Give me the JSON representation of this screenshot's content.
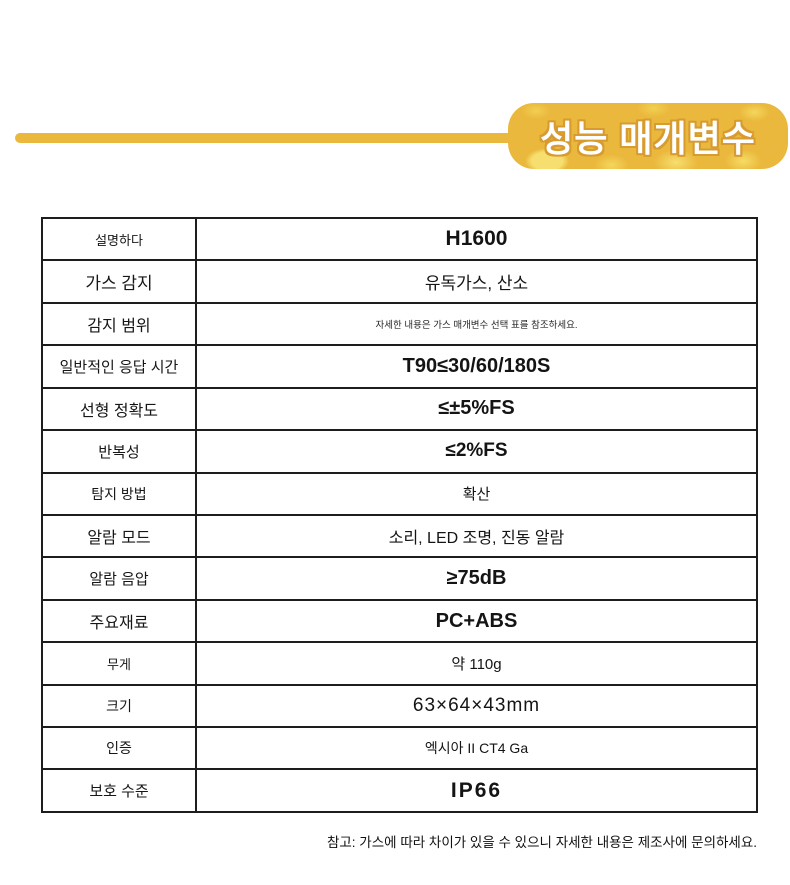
{
  "banner": {
    "title": "성능 매개변수",
    "gold_color": "#EAB83C",
    "highlight_color": "#F7DF6F",
    "outline_color": "#D79B2F",
    "text_color": "#FFFFFF"
  },
  "table": {
    "rows": [
      {
        "label": "설명하다",
        "value": "H1600"
      },
      {
        "label": "가스 감지",
        "value": "유독가스, 산소"
      },
      {
        "label": "감지 범위",
        "value": "자세한 내용은 가스 매개변수 선택 표를 참조하세요."
      },
      {
        "label": "일반적인 응답 시간",
        "value": "T90≤30/60/180S"
      },
      {
        "label": "선형 정확도",
        "value": "≤±5%FS"
      },
      {
        "label": "반복성",
        "value": "≤2%FS"
      },
      {
        "label": "탐지 방법",
        "value": "확산"
      },
      {
        "label": "알람 모드",
        "value": "소리, LED 조명, 진동 알람"
      },
      {
        "label": "알람 음압",
        "value": "≥75dB"
      },
      {
        "label": "주요재료",
        "value": "PC+ABS"
      },
      {
        "label": "무게",
        "value": "약 110g"
      },
      {
        "label": "크기",
        "value": "63×64×43mm"
      },
      {
        "label": "인증",
        "value": "엑시아 II CT4 Ga"
      },
      {
        "label": "보호 수준",
        "value": "IP66"
      }
    ]
  },
  "footnote": "참고: 가스에 따라 차이가 있을 수 있으니 자세한 내용은 제조사에 문의하세요."
}
